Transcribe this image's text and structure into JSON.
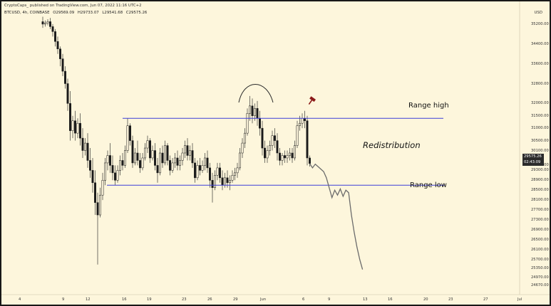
{
  "header": {
    "published": "CryptoCaps_ published on TradingView.com, Jun 07, 2022 11:16 UTC+2",
    "symbol": "BTCUSD, 4h, COINBASE",
    "ohlc": [
      "O29569.09",
      "H29733.07",
      "L29541.68",
      "C29575.26"
    ],
    "currency": "USD"
  },
  "price_tag": {
    "price": "29575.26",
    "countdown": "02:43:09"
  },
  "annotations": {
    "range_high": "Range high",
    "range_low": "Range low",
    "phase": "Redistribution"
  },
  "colors": {
    "background": "#fdf6dc",
    "candles": "#1a1a1a",
    "range_lines": "#3d3dd8",
    "projection": "#6b6b6b",
    "marker": "#8b1a1a"
  },
  "chart_data": {
    "type": "candlestick",
    "symbol": "BTCUSD",
    "timeframe": "4h",
    "y_ticks": [
      35200,
      34400,
      33600,
      32800,
      32000,
      31500,
      31000,
      30500,
      30100,
      29500,
      29300,
      28900,
      28500,
      28100,
      27700,
      27300,
      26900,
      26500,
      26100,
      25700,
      25350,
      24970,
      24670
    ],
    "ylim": [
      24400,
      35600
    ],
    "x_ticks": [
      "4",
      "9",
      "12",
      "16",
      "19",
      "23",
      "26",
      "29",
      "Jun",
      "6",
      "9",
      "13",
      "16",
      "20",
      "23",
      "27",
      "Jul"
    ],
    "horizontal_levels": [
      {
        "name": "Range high",
        "price": 31400
      },
      {
        "name": "Range low",
        "price": 28700
      }
    ],
    "candles": [
      {
        "o": 35300,
        "h": 35500,
        "c": 35200,
        "l": 35050
      },
      {
        "o": 35200,
        "h": 35350,
        "c": 35250,
        "l": 35100
      },
      {
        "o": 35250,
        "h": 35400,
        "c": 35300,
        "l": 35150
      },
      {
        "o": 35300,
        "h": 35450,
        "c": 35100,
        "l": 35000
      },
      {
        "o": 35100,
        "h": 35200,
        "c": 34900,
        "l": 34700
      },
      {
        "o": 34900,
        "h": 35000,
        "c": 34500,
        "l": 34300
      },
      {
        "o": 34500,
        "h": 34700,
        "c": 34200,
        "l": 34000
      },
      {
        "o": 34200,
        "h": 34300,
        "c": 33800,
        "l": 33500
      },
      {
        "o": 33800,
        "h": 34000,
        "c": 33300,
        "l": 33100
      },
      {
        "o": 33300,
        "h": 33500,
        "c": 32800,
        "l": 32600
      },
      {
        "o": 32800,
        "h": 33000,
        "c": 32000,
        "l": 31700
      },
      {
        "o": 32000,
        "h": 32500,
        "c": 30900,
        "l": 30500
      },
      {
        "o": 30900,
        "h": 31500,
        "c": 31300,
        "l": 30600
      },
      {
        "o": 31300,
        "h": 31700,
        "c": 30800,
        "l": 30500
      },
      {
        "o": 30800,
        "h": 31400,
        "c": 31200,
        "l": 30600
      },
      {
        "o": 31200,
        "h": 31600,
        "c": 30600,
        "l": 30300
      },
      {
        "o": 30600,
        "h": 31000,
        "c": 30100,
        "l": 29800
      },
      {
        "o": 30100,
        "h": 30600,
        "c": 30400,
        "l": 29900
      },
      {
        "o": 30400,
        "h": 30800,
        "c": 29700,
        "l": 29400
      },
      {
        "o": 29700,
        "h": 30200,
        "c": 29300,
        "l": 29000
      },
      {
        "o": 29300,
        "h": 29800,
        "c": 28800,
        "l": 28400
      },
      {
        "o": 28800,
        "h": 29300,
        "c": 28000,
        "l": 27500
      },
      {
        "o": 28000,
        "h": 28400,
        "c": 27500,
        "l": 25500
      },
      {
        "o": 27500,
        "h": 28600,
        "c": 28300,
        "l": 27400
      },
      {
        "o": 28300,
        "h": 29200,
        "c": 28900,
        "l": 28100
      },
      {
        "o": 28900,
        "h": 29800,
        "c": 29600,
        "l": 28700
      },
      {
        "o": 29600,
        "h": 30100,
        "c": 29900,
        "l": 29300
      },
      {
        "o": 29900,
        "h": 30400,
        "c": 29500,
        "l": 29200
      },
      {
        "o": 29500,
        "h": 29900,
        "c": 29200,
        "l": 28900
      },
      {
        "o": 29200,
        "h": 29500,
        "c": 28900,
        "l": 28700
      },
      {
        "o": 28900,
        "h": 29500,
        "c": 29300,
        "l": 28800
      },
      {
        "o": 29300,
        "h": 29900,
        "c": 29700,
        "l": 29100
      },
      {
        "o": 29700,
        "h": 30000,
        "c": 29500,
        "l": 29300
      },
      {
        "o": 29500,
        "h": 30300,
        "c": 30100,
        "l": 29400
      },
      {
        "o": 30100,
        "h": 31400,
        "c": 31100,
        "l": 30000
      },
      {
        "o": 31100,
        "h": 31200,
        "c": 30500,
        "l": 30300
      },
      {
        "o": 30500,
        "h": 30700,
        "c": 29600,
        "l": 29400
      },
      {
        "o": 29600,
        "h": 30200,
        "c": 30000,
        "l": 29500
      },
      {
        "o": 30000,
        "h": 30500,
        "c": 29700,
        "l": 29500
      },
      {
        "o": 29700,
        "h": 30000,
        "c": 29400,
        "l": 29200
      },
      {
        "o": 29400,
        "h": 30000,
        "c": 29800,
        "l": 29300
      },
      {
        "o": 29800,
        "h": 30400,
        "c": 30200,
        "l": 29700
      },
      {
        "o": 30200,
        "h": 30700,
        "c": 30500,
        "l": 30000
      },
      {
        "o": 30500,
        "h": 30600,
        "c": 29800,
        "l": 29600
      },
      {
        "o": 29800,
        "h": 30300,
        "c": 30100,
        "l": 29700
      },
      {
        "o": 30100,
        "h": 30400,
        "c": 29500,
        "l": 29300
      },
      {
        "o": 29500,
        "h": 29800,
        "c": 29200,
        "l": 28800
      },
      {
        "o": 29200,
        "h": 30200,
        "c": 30000,
        "l": 29100
      },
      {
        "o": 30000,
        "h": 30300,
        "c": 29600,
        "l": 29400
      },
      {
        "o": 29600,
        "h": 30500,
        "c": 30300,
        "l": 29500
      },
      {
        "o": 30300,
        "h": 30400,
        "c": 29700,
        "l": 29500
      },
      {
        "o": 29700,
        "h": 29900,
        "c": 29300,
        "l": 29100
      },
      {
        "o": 29300,
        "h": 29800,
        "c": 29600,
        "l": 29200
      },
      {
        "o": 29600,
        "h": 30000,
        "c": 29800,
        "l": 29400
      },
      {
        "o": 29800,
        "h": 30100,
        "c": 29500,
        "l": 29300
      },
      {
        "o": 29500,
        "h": 29900,
        "c": 29700,
        "l": 29300
      },
      {
        "o": 29700,
        "h": 30200,
        "c": 30000,
        "l": 29500
      },
      {
        "o": 30000,
        "h": 30500,
        "c": 30300,
        "l": 29800
      },
      {
        "o": 30300,
        "h": 30600,
        "c": 29900,
        "l": 29700
      },
      {
        "o": 29900,
        "h": 30300,
        "c": 30100,
        "l": 29700
      },
      {
        "o": 30100,
        "h": 30400,
        "c": 29600,
        "l": 29400
      },
      {
        "o": 29600,
        "h": 29800,
        "c": 29000,
        "l": 28800
      },
      {
        "o": 29000,
        "h": 29700,
        "c": 29500,
        "l": 28900
      },
      {
        "o": 29500,
        "h": 29800,
        "c": 29300,
        "l": 29100
      },
      {
        "o": 29300,
        "h": 29700,
        "c": 29500,
        "l": 29200
      },
      {
        "o": 29500,
        "h": 30000,
        "c": 29800,
        "l": 29300
      },
      {
        "o": 29800,
        "h": 30100,
        "c": 29400,
        "l": 29200
      },
      {
        "o": 29400,
        "h": 29600,
        "c": 28900,
        "l": 28600
      },
      {
        "o": 28900,
        "h": 29200,
        "c": 28600,
        "l": 28000
      },
      {
        "o": 28600,
        "h": 29300,
        "c": 29100,
        "l": 28500
      },
      {
        "o": 29100,
        "h": 29600,
        "c": 29400,
        "l": 28900
      },
      {
        "o": 29400,
        "h": 29600,
        "c": 29000,
        "l": 28800
      },
      {
        "o": 29000,
        "h": 29300,
        "c": 28700,
        "l": 28500
      },
      {
        "o": 28700,
        "h": 29200,
        "c": 29000,
        "l": 28600
      },
      {
        "o": 29000,
        "h": 29300,
        "c": 28800,
        "l": 28600
      },
      {
        "o": 28800,
        "h": 29100,
        "c": 28900,
        "l": 28500
      },
      {
        "o": 28900,
        "h": 29300,
        "c": 29100,
        "l": 28800
      },
      {
        "o": 29100,
        "h": 29400,
        "c": 29200,
        "l": 28900
      },
      {
        "o": 29200,
        "h": 29600,
        "c": 29400,
        "l": 29000
      },
      {
        "o": 29400,
        "h": 30200,
        "c": 30000,
        "l": 29300
      },
      {
        "o": 30000,
        "h": 30600,
        "c": 30400,
        "l": 29800
      },
      {
        "o": 30400,
        "h": 31000,
        "c": 30800,
        "l": 30200
      },
      {
        "o": 30800,
        "h": 31800,
        "c": 31600,
        "l": 30700
      },
      {
        "o": 31600,
        "h": 32300,
        "c": 31900,
        "l": 31300
      },
      {
        "o": 31900,
        "h": 32200,
        "c": 31500,
        "l": 31200
      },
      {
        "o": 31500,
        "h": 32000,
        "c": 31800,
        "l": 31300
      },
      {
        "o": 31800,
        "h": 32100,
        "c": 31400,
        "l": 31100
      },
      {
        "o": 31400,
        "h": 31700,
        "c": 31000,
        "l": 30700
      },
      {
        "o": 31000,
        "h": 31300,
        "c": 30200,
        "l": 29900
      },
      {
        "o": 30200,
        "h": 30500,
        "c": 29800,
        "l": 29600
      },
      {
        "o": 29800,
        "h": 30300,
        "c": 30100,
        "l": 29600
      },
      {
        "o": 30100,
        "h": 30500,
        "c": 30300,
        "l": 29900
      },
      {
        "o": 30300,
        "h": 30900,
        "c": 30700,
        "l": 30100
      },
      {
        "o": 30700,
        "h": 31000,
        "c": 30500,
        "l": 30200
      },
      {
        "o": 30500,
        "h": 30800,
        "c": 30000,
        "l": 29700
      },
      {
        "o": 30000,
        "h": 30200,
        "c": 29700,
        "l": 29500
      },
      {
        "o": 29700,
        "h": 30000,
        "c": 29900,
        "l": 29500
      },
      {
        "o": 29900,
        "h": 30100,
        "c": 29800,
        "l": 29600
      },
      {
        "o": 29800,
        "h": 30100,
        "c": 29900,
        "l": 29600
      },
      {
        "o": 29900,
        "h": 30200,
        "c": 30000,
        "l": 29700
      },
      {
        "o": 30000,
        "h": 30200,
        "c": 29800,
        "l": 29600
      },
      {
        "o": 29800,
        "h": 30500,
        "c": 30300,
        "l": 29700
      },
      {
        "o": 30300,
        "h": 31300,
        "c": 31100,
        "l": 30200
      },
      {
        "o": 31100,
        "h": 31500,
        "c": 31200,
        "l": 30900
      },
      {
        "o": 31200,
        "h": 31600,
        "c": 31400,
        "l": 31000
      },
      {
        "o": 31400,
        "h": 31700,
        "c": 31300,
        "l": 31000
      },
      {
        "o": 31300,
        "h": 31500,
        "c": 29800,
        "l": 29500
      },
      {
        "o": 29800,
        "h": 29900,
        "c": 29575,
        "l": 29450
      }
    ],
    "projection": [
      [
        29575,
        0
      ],
      [
        29400,
        1
      ],
      [
        29550,
        2
      ],
      [
        29450,
        3
      ],
      [
        29350,
        4
      ],
      [
        29250,
        5
      ],
      [
        29000,
        6
      ],
      [
        28600,
        7
      ],
      [
        28200,
        8
      ],
      [
        28500,
        9
      ],
      [
        28300,
        10
      ],
      [
        28550,
        11
      ],
      [
        28250,
        12
      ],
      [
        28500,
        13
      ],
      [
        28400,
        14
      ],
      [
        27500,
        15
      ],
      [
        26800,
        16
      ],
      [
        26200,
        17
      ],
      [
        25700,
        18
      ],
      [
        25300,
        19
      ]
    ]
  }
}
